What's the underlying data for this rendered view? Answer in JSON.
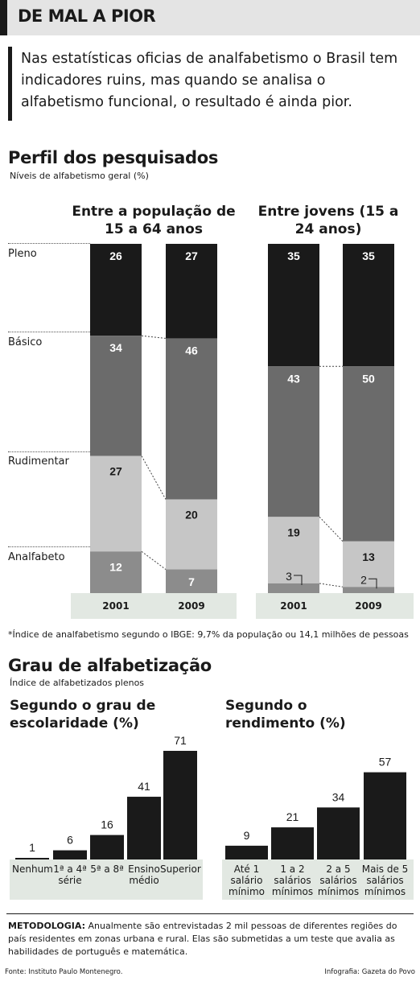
{
  "header": {
    "title": "DE MAL A PIOR"
  },
  "intro": {
    "text": "Nas estatísticas oficias de analfabetismo o Brasil tem indicadores ruins, mas quando se analisa o alfabetismo funcional, o resultado é ainda pior."
  },
  "profile": {
    "title": "Perfil dos pesquisados",
    "subtitle": "Níveis de alfabetismo geral (%)",
    "group1_title": "Entre a população de 15 a 64 anos",
    "group2_title": "Entre jovens (15 a 24 anos)",
    "levels": [
      "Pleno",
      "Básico",
      "Rudimentar",
      "Analfabeto"
    ],
    "years": [
      "2001",
      "2009",
      "2001",
      "2009"
    ]
  },
  "footnote": "*Índice de analfabetismo segundo o IBGE: 9,7% da população ou 14,1 milhões de pessoas",
  "grade": {
    "title": "Grau de alfabetização",
    "subtitle": "Índice de alfabetizados plenos",
    "left_title": "Segundo o grau de escolaridade (%)",
    "right_title": "Segundo o rendimento (%)"
  },
  "methodology": {
    "label": "METODOLOGIA:",
    "text": "Anualmente são entrevistadas 2 mil pessoas de diferentes regiões do país residentes em zonas urbana e rural. Elas são submetidas a um teste que avalia as habilidades de português e matemática."
  },
  "source": "Fonte: Instituto Paulo Montenegro.",
  "credit": "Infografia: Gazeta do Povo",
  "colors": {
    "pleno": "#1a1a1a",
    "basico": "#6b6b6b",
    "rudimentar": "#c6c6c6",
    "analfabeto": "#8c8c8c",
    "yearbox": "#e2e8e2",
    "bar": "#1a1a1a",
    "barbox": "#e2e8e2"
  },
  "chart_data": [
    {
      "type": "bar",
      "stacked": true,
      "title": "Entre a população de 15 a 64 anos",
      "categories": [
        "2001",
        "2009"
      ],
      "series": [
        {
          "name": "Pleno",
          "values": [
            26,
            27
          ]
        },
        {
          "name": "Básico",
          "values": [
            34,
            46
          ]
        },
        {
          "name": "Rudimentar",
          "values": [
            27,
            20
          ]
        },
        {
          "name": "Analfabeto",
          "values": [
            12,
            7
          ]
        }
      ],
      "ylim": [
        0,
        100
      ]
    },
    {
      "type": "bar",
      "stacked": true,
      "title": "Entre jovens (15 a 24 anos)",
      "categories": [
        "2001",
        "2009"
      ],
      "series": [
        {
          "name": "Pleno",
          "values": [
            35,
            35
          ]
        },
        {
          "name": "Básico",
          "values": [
            43,
            50
          ]
        },
        {
          "name": "Rudimentar",
          "values": [
            19,
            13
          ]
        },
        {
          "name": "Analfabeto",
          "values": [
            3,
            2
          ]
        }
      ],
      "ylim": [
        0,
        100
      ]
    },
    {
      "type": "bar",
      "title": "Segundo o grau de escolaridade (%)",
      "categories": [
        "Nenhum",
        "1ª a 4ª série",
        "5ª a 8ª",
        "Ensino médio",
        "Superior"
      ],
      "values": [
        1,
        6,
        16,
        41,
        71
      ],
      "ylim": [
        0,
        71
      ]
    },
    {
      "type": "bar",
      "title": "Segundo o rendimento (%)",
      "categories": [
        "Até 1 salário mínimo",
        "1 a 2 salários mínimos",
        "2 a 5 salários mínimos",
        "Mais de 5 salários mínimos"
      ],
      "values": [
        9,
        21,
        34,
        57
      ],
      "ylim": [
        0,
        71
      ]
    }
  ]
}
